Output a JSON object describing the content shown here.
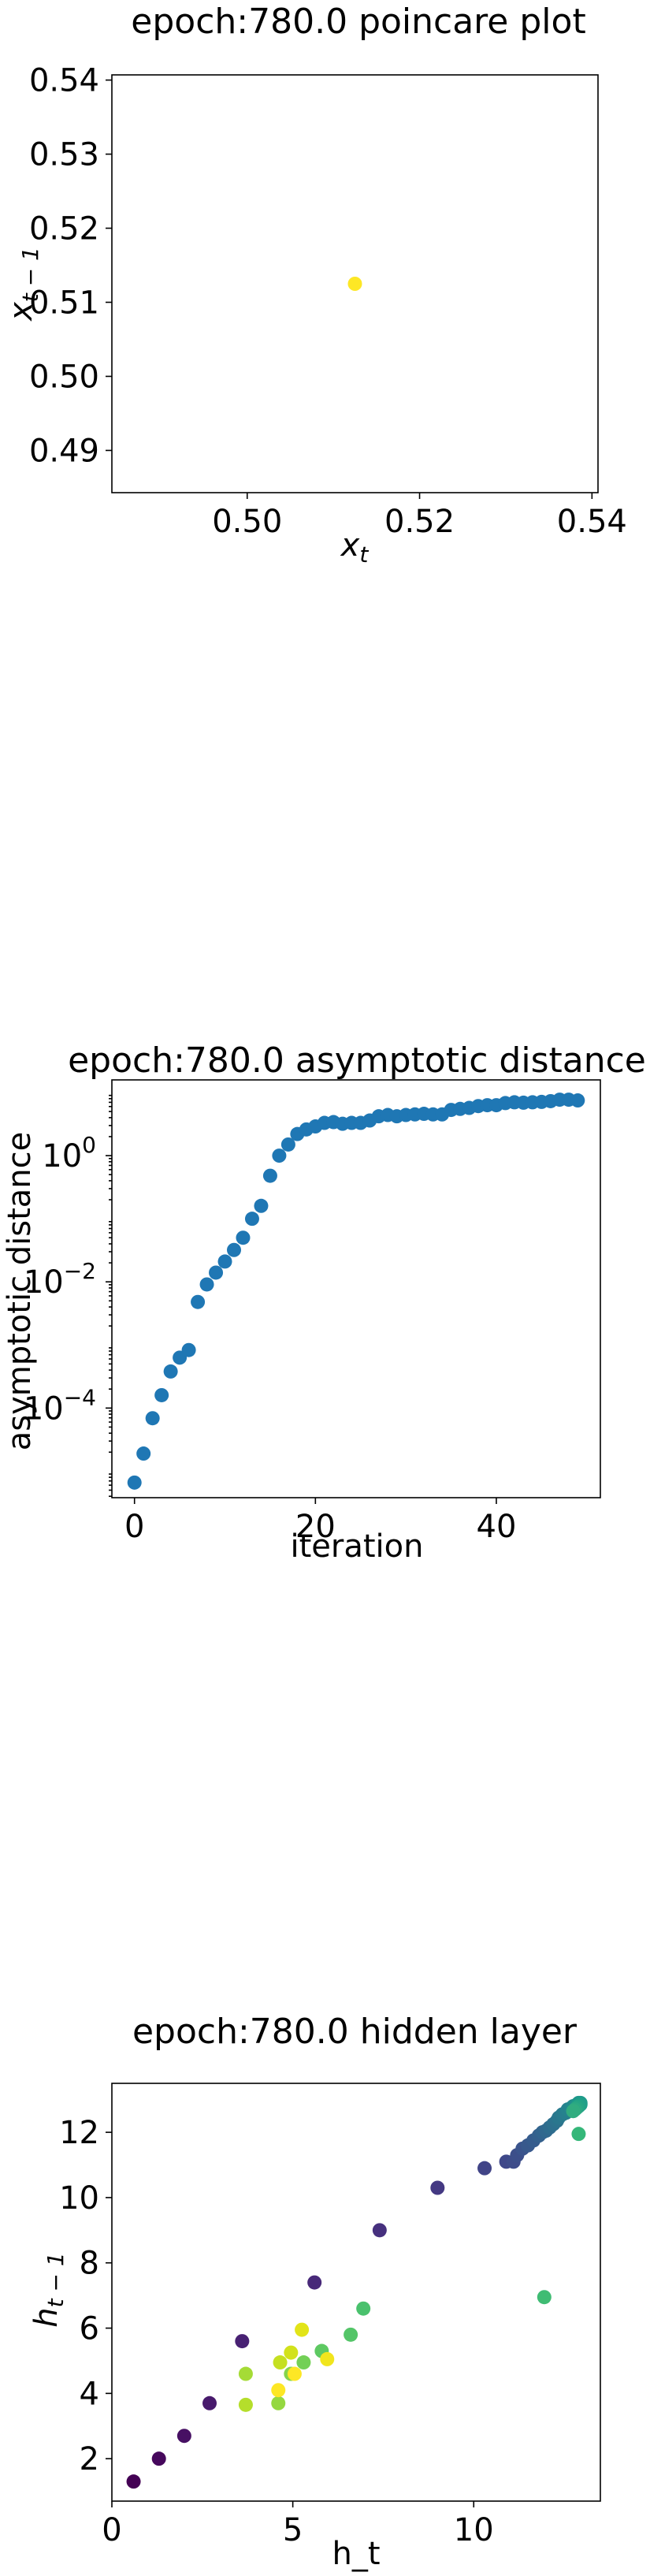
{
  "chart_data": [
    {
      "type": "scatter",
      "title": "epoch:780.0 poincare plot",
      "xlabel": "x_t",
      "ylabel": "x_{t-1}",
      "xlim": [
        0.4843,
        0.5407
      ],
      "ylim": [
        0.4843,
        0.5407
      ],
      "xticks": [
        "0.50",
        "0.52",
        "0.54"
      ],
      "yticks": [
        "0.49",
        "0.50",
        "0.51",
        "0.52",
        "0.53",
        "0.54"
      ],
      "series": [
        {
          "color": "#fde725",
          "points": [
            [
              0.5125,
              0.5125
            ]
          ]
        }
      ]
    },
    {
      "type": "scatter",
      "title": "epoch:780.0 asymptotic distance",
      "xlabel": "iteration",
      "ylabel": "asymptotic distance",
      "yscale": "log",
      "xlim": [
        -2.5,
        51.5
      ],
      "xticks": [
        "0",
        "20",
        "40"
      ],
      "yticks": [
        "10^0",
        "10^-2",
        "10^-4"
      ],
      "series": [
        {
          "color": "#1f77b4",
          "x": [
            0,
            1,
            2,
            3,
            4,
            5,
            6,
            7,
            8,
            9,
            10,
            11,
            12,
            13,
            14,
            15,
            16,
            17,
            18,
            19,
            20,
            21,
            22,
            23,
            24,
            25,
            26,
            27,
            28,
            29,
            30,
            31,
            32,
            33,
            34,
            35,
            36,
            37,
            38,
            39,
            40,
            41,
            42,
            43,
            44,
            45,
            46,
            47,
            48,
            49
          ],
          "y": [
            6.6e-06,
            1.9e-05,
            6.9e-05,
            0.00016,
            0.00038,
            0.00063,
            0.00083,
            0.0048,
            0.0091,
            0.014,
            0.021,
            0.032,
            0.05,
            0.1,
            0.16,
            0.48,
            1.0,
            1.5,
            2.2,
            2.6,
            2.9,
            3.3,
            3.4,
            3.2,
            3.3,
            3.3,
            3.6,
            4.2,
            4.4,
            4.2,
            4.4,
            4.5,
            4.6,
            4.5,
            4.5,
            5.3,
            5.5,
            5.7,
            6.1,
            6.3,
            6.3,
            6.8,
            7.0,
            6.9,
            7.0,
            7.1,
            7.3,
            7.7,
            7.7,
            7.5
          ]
        }
      ]
    },
    {
      "type": "scatter",
      "title": "epoch:780.0 hidden layer",
      "xlabel": "h_t",
      "ylabel": "h_{t-1}",
      "xlim": [
        0,
        13.5
      ],
      "ylim": [
        0.7,
        13.5
      ],
      "xticks": [
        "0",
        "5",
        "10"
      ],
      "yticks": [
        "2",
        "4",
        "6",
        "8",
        "10",
        "12"
      ],
      "series": [
        {
          "points": [
            [
              0.6,
              1.3,
              "#440154"
            ],
            [
              1.3,
              2.0,
              "#46085c"
            ],
            [
              2.0,
              2.7,
              "#471063"
            ],
            [
              2.7,
              3.7,
              "#481a6c"
            ],
            [
              3.6,
              5.6,
              "#482173"
            ],
            [
              5.6,
              7.4,
              "#482979"
            ],
            [
              7.4,
              9.0,
              "#46307e"
            ],
            [
              9.0,
              10.3,
              "#443983"
            ],
            [
              10.3,
              10.9,
              "#414487"
            ],
            [
              10.9,
              11.1,
              "#3f4889"
            ],
            [
              11.1,
              11.1,
              "#3e4c8a"
            ],
            [
              11.2,
              11.3,
              "#3c4f8a"
            ],
            [
              11.35,
              11.5,
              "#3a548c"
            ],
            [
              11.5,
              11.6,
              "#38598c"
            ],
            [
              11.65,
              11.75,
              "#365c8d"
            ],
            [
              11.8,
              11.9,
              "#34608d"
            ],
            [
              11.9,
              12.0,
              "#32648e"
            ],
            [
              12.0,
              12.05,
              "#31688e"
            ],
            [
              12.1,
              12.15,
              "#2f6c8e"
            ],
            [
              12.2,
              12.25,
              "#2d708e"
            ],
            [
              12.3,
              12.35,
              "#2c738e"
            ],
            [
              12.35,
              12.45,
              "#2a778e"
            ],
            [
              12.45,
              12.55,
              "#297b8e"
            ],
            [
              12.55,
              12.6,
              "#277f8e"
            ],
            [
              12.6,
              12.7,
              "#26828e"
            ],
            [
              12.7,
              12.75,
              "#24868e"
            ],
            [
              12.75,
              12.8,
              "#238a8d"
            ],
            [
              12.85,
              12.85,
              "#218e8d"
            ],
            [
              12.9,
              12.85,
              "#20928c"
            ],
            [
              12.9,
              12.9,
              "#1f968b"
            ],
            [
              12.95,
              12.9,
              "#1e9a8a"
            ],
            [
              12.95,
              12.85,
              "#1f9e89"
            ],
            [
              12.9,
              12.8,
              "#21a286"
            ],
            [
              12.85,
              12.75,
              "#25a584"
            ],
            [
              12.8,
              12.7,
              "#2ba982"
            ],
            [
              12.75,
              12.65,
              "#31ac7f"
            ],
            [
              12.9,
              11.95,
              "#35b779"
            ],
            [
              11.95,
              6.95,
              "#3fbc73"
            ],
            [
              6.95,
              6.6,
              "#4ac16d"
            ],
            [
              6.6,
              5.8,
              "#54c568"
            ],
            [
              5.8,
              5.3,
              "#5ec962"
            ],
            [
              5.3,
              4.95,
              "#73d056"
            ],
            [
              4.95,
              4.6,
              "#84d44b"
            ],
            [
              4.6,
              3.7,
              "#95d840"
            ],
            [
              3.7,
              4.6,
              "#a5db36"
            ],
            [
              3.7,
              3.65,
              "#b5de2b"
            ],
            [
              4.65,
              4.95,
              "#c5e021"
            ],
            [
              4.95,
              5.25,
              "#d2e21b"
            ],
            [
              5.25,
              5.95,
              "#e2e418"
            ],
            [
              5.95,
              5.05,
              "#f1e51d"
            ],
            [
              5.05,
              4.6,
              "#fde725"
            ],
            [
              4.6,
              4.1,
              "#fde725"
            ]
          ]
        }
      ]
    }
  ]
}
